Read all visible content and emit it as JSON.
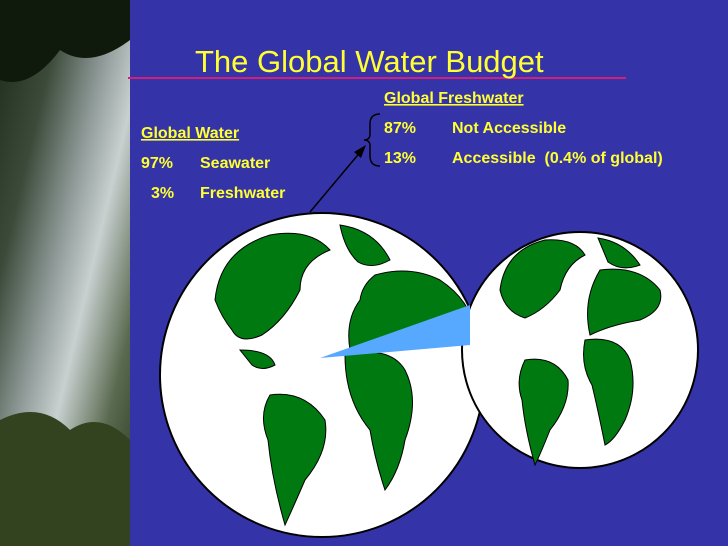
{
  "title": "The Global Water Budget",
  "global_water": {
    "heading": "Global Water",
    "rows": [
      [
        "97%",
        "Seawater"
      ],
      [
        "3%",
        "Freshwater"
      ]
    ]
  },
  "global_freshwater": {
    "heading": "Global Freshwater",
    "rows": [
      [
        "87%",
        "Not Accessible"
      ],
      [
        "13%",
        "Accessible  (0.4% of global)"
      ]
    ]
  }
}
